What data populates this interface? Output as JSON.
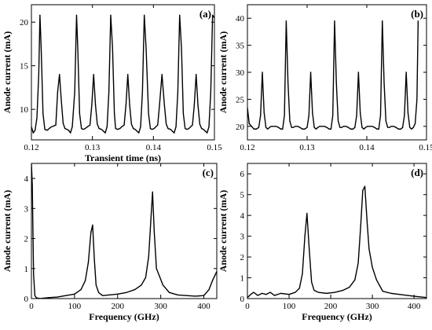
{
  "chart_data": [
    {
      "panel": "(a)",
      "type": "line",
      "xlabel": "Transient time (ns)",
      "ylabel": "Anode current (mA)",
      "xlim": [
        0.12,
        0.15
      ],
      "ylim": [
        6.5,
        22
      ],
      "xticks": [
        "0.12",
        "0.13",
        "0.14",
        "0.15"
      ],
      "yticks": [
        "10",
        "15",
        "20"
      ],
      "series": [
        {
          "x": [
            0.12,
            0.1203,
            0.1206,
            0.1209,
            0.1212,
            0.1214,
            0.1216,
            0.1219,
            0.1222,
            0.1226,
            0.1229,
            0.1233,
            0.1237,
            0.124,
            0.1243,
            0.1246,
            0.1249,
            0.1252,
            0.1255,
            0.1258,
            0.1261,
            0.1264,
            0.1267,
            0.1271,
            0.1274,
            0.1276,
            0.1279,
            0.1282,
            0.1285,
            0.1288,
            0.1292,
            0.1296,
            0.1299,
            0.1302,
            0.1305,
            0.1308,
            0.1311,
            0.1315,
            0.1318,
            0.1321,
            0.1324,
            0.1327,
            0.133,
            0.1333,
            0.1336,
            0.1338,
            0.1341,
            0.1345,
            0.1348,
            0.1352,
            0.1355,
            0.1358,
            0.1361,
            0.1364,
            0.1367,
            0.137,
            0.1373,
            0.1376,
            0.1379,
            0.1382,
            0.1385,
            0.1388,
            0.1392,
            0.1395,
            0.1398,
            0.1401,
            0.1404,
            0.1407,
            0.141,
            0.1414,
            0.1418,
            0.1421,
            0.1424,
            0.1428,
            0.1431,
            0.1434,
            0.1437,
            0.144,
            0.1443,
            0.1446,
            0.1449,
            0.1452,
            0.1455,
            0.1458,
            0.1461,
            0.1464,
            0.1467,
            0.147,
            0.1473,
            0.1476,
            0.1479,
            0.1482,
            0.1485,
            0.1488,
            0.1491,
            0.1494,
            0.1497,
            0.15
          ],
          "y": [
            8.0,
            7.3,
            7.6,
            9.0,
            14.0,
            20.8,
            17.0,
            9.5,
            7.7,
            7.6,
            7.8,
            8.0,
            8.1,
            8.2,
            12.0,
            14.0,
            11.0,
            8.4,
            7.8,
            7.7,
            7.6,
            7.3,
            8.0,
            12.0,
            20.8,
            17.0,
            9.5,
            7.8,
            7.7,
            7.8,
            8.0,
            8.2,
            10.5,
            14.0,
            10.5,
            8.3,
            7.8,
            7.7,
            7.5,
            7.3,
            8.0,
            12.0,
            20.8,
            17.0,
            9.5,
            7.8,
            7.7,
            7.8,
            8.0,
            8.2,
            10.5,
            14.0,
            10.5,
            8.3,
            7.8,
            7.7,
            7.5,
            7.3,
            8.0,
            12.0,
            20.8,
            17.0,
            9.5,
            7.8,
            7.7,
            7.8,
            8.0,
            8.2,
            10.5,
            14.0,
            10.5,
            8.3,
            7.8,
            7.7,
            7.5,
            7.3,
            8.0,
            12.0,
            20.8,
            17.0,
            9.5,
            7.8,
            7.7,
            7.8,
            8.0,
            8.2,
            10.5,
            14.0,
            10.5,
            8.3,
            7.8,
            7.7,
            7.5,
            7.3,
            8.0,
            12.0,
            20.8,
            20.5
          ]
        }
      ]
    },
    {
      "panel": "(b)",
      "type": "line",
      "xlabel": "",
      "ylabel": "Anode current (mA)",
      "xlim": [
        0.12,
        0.15
      ],
      "ylim": [
        17.5,
        42.5
      ],
      "xticks": [
        "0.12",
        "0.13",
        "0.14",
        "0.15"
      ],
      "yticks": [
        "20",
        "25",
        "30",
        "35",
        "40"
      ],
      "series": [
        {
          "x": [
            0.12,
            0.1203,
            0.1207,
            0.1211,
            0.1215,
            0.1219,
            0.1222,
            0.1225,
            0.1228,
            0.1231,
            0.1234,
            0.1237,
            0.124,
            0.1244,
            0.1248,
            0.1252,
            0.1256,
            0.1259,
            0.1262,
            0.1265,
            0.1268,
            0.1271,
            0.1274,
            0.1277,
            0.128,
            0.1284,
            0.1288,
            0.1292,
            0.1296,
            0.13,
            0.1303,
            0.1306,
            0.1309,
            0.1312,
            0.1315,
            0.1318,
            0.1321,
            0.1325,
            0.1329,
            0.1333,
            0.1337,
            0.134,
            0.1343,
            0.1346,
            0.1349,
            0.1352,
            0.1355,
            0.1358,
            0.1361,
            0.1365,
            0.1369,
            0.1373,
            0.1377,
            0.138,
            0.1383,
            0.1386,
            0.1389,
            0.1392,
            0.1395,
            0.1398,
            0.1401,
            0.1405,
            0.1409,
            0.1413,
            0.1417,
            0.142,
            0.1423,
            0.1426,
            0.1429,
            0.1432,
            0.1435,
            0.1438,
            0.1441,
            0.1445,
            0.1449,
            0.1453,
            0.1457,
            0.146,
            0.1463,
            0.1466,
            0.1469,
            0.1472,
            0.1475,
            0.1478,
            0.1481,
            0.1484,
            0.1486
          ],
          "y": [
            23.5,
            20.5,
            20.0,
            19.5,
            19.5,
            19.8,
            22.0,
            30.0,
            22.5,
            19.8,
            19.5,
            19.8,
            20.0,
            20.0,
            20.0,
            19.8,
            19.5,
            19.5,
            22.0,
            39.5,
            28.0,
            21.0,
            19.8,
            19.8,
            20.0,
            20.0,
            19.8,
            19.5,
            19.5,
            19.8,
            22.0,
            30.0,
            22.5,
            19.8,
            19.5,
            19.8,
            20.0,
            20.0,
            20.0,
            19.8,
            19.5,
            19.5,
            22.0,
            39.5,
            28.0,
            21.0,
            19.8,
            19.8,
            20.0,
            20.0,
            19.8,
            19.5,
            19.5,
            19.8,
            22.0,
            30.0,
            22.5,
            19.8,
            19.5,
            19.8,
            20.0,
            20.0,
            20.0,
            19.8,
            19.5,
            19.5,
            22.0,
            39.5,
            28.0,
            21.0,
            19.8,
            19.8,
            20.0,
            20.0,
            19.8,
            19.5,
            19.5,
            19.8,
            22.0,
            30.0,
            22.5,
            19.8,
            19.5,
            19.8,
            20.5,
            25.0,
            39.5
          ]
        }
      ]
    },
    {
      "panel": "(c)",
      "type": "line",
      "xlabel": "Frequency (GHz)",
      "ylabel": "Anode current (mA)",
      "xlim": [
        0,
        430
      ],
      "ylim": [
        0,
        4.5
      ],
      "xticks": [
        "0",
        "100",
        "200",
        "300",
        "400"
      ],
      "yticks": [
        "0",
        "1",
        "2",
        "3",
        "4"
      ],
      "series": [
        {
          "x": [
            0,
            2,
            5,
            8,
            12,
            20,
            40,
            60,
            80,
            100,
            115,
            125,
            132,
            138,
            142,
            146,
            150,
            156,
            165,
            180,
            200,
            220,
            240,
            255,
            265,
            272,
            277,
            281,
            285,
            290,
            297,
            305,
            320,
            340,
            360,
            380,
            400,
            412,
            420,
            430
          ],
          "y": [
            4.5,
            3.8,
            0.8,
            0.1,
            0.02,
            0.0,
            0.03,
            0.05,
            0.1,
            0.15,
            0.3,
            0.6,
            1.2,
            2.2,
            2.45,
            1.3,
            0.45,
            0.2,
            0.1,
            0.12,
            0.15,
            0.2,
            0.3,
            0.45,
            0.7,
            1.4,
            2.6,
            3.55,
            2.2,
            1.0,
            0.75,
            0.45,
            0.2,
            0.12,
            0.1,
            0.08,
            0.1,
            0.3,
            0.6,
            0.9
          ]
        }
      ]
    },
    {
      "panel": "(d)",
      "type": "line",
      "xlabel": "Frequency (GHz)",
      "ylabel": "Anode current (mA)",
      "xlim": [
        0,
        430
      ],
      "ylim": [
        0,
        6.5
      ],
      "xticks": [
        "0",
        "100",
        "200",
        "300",
        "400"
      ],
      "yticks": [
        "0",
        "1",
        "2",
        "3",
        "4",
        "5",
        "6"
      ],
      "series": [
        {
          "x": [
            0,
            8,
            15,
            25,
            35,
            45,
            55,
            65,
            80,
            100,
            115,
            125,
            132,
            138,
            143,
            148,
            154,
            160,
            170,
            190,
            210,
            230,
            245,
            258,
            266,
            272,
            277,
            282,
            287,
            292,
            300,
            310,
            325,
            345,
            365,
            385,
            405,
            430
          ],
          "y": [
            0.05,
            0.2,
            0.3,
            0.15,
            0.25,
            0.2,
            0.3,
            0.15,
            0.25,
            0.2,
            0.3,
            0.5,
            1.2,
            3.0,
            4.1,
            2.5,
            0.8,
            0.4,
            0.3,
            0.25,
            0.3,
            0.4,
            0.55,
            0.9,
            1.7,
            3.5,
            5.2,
            5.4,
            3.8,
            2.4,
            1.5,
            0.9,
            0.35,
            0.25,
            0.2,
            0.15,
            0.1,
            0.05
          ]
        }
      ]
    }
  ]
}
